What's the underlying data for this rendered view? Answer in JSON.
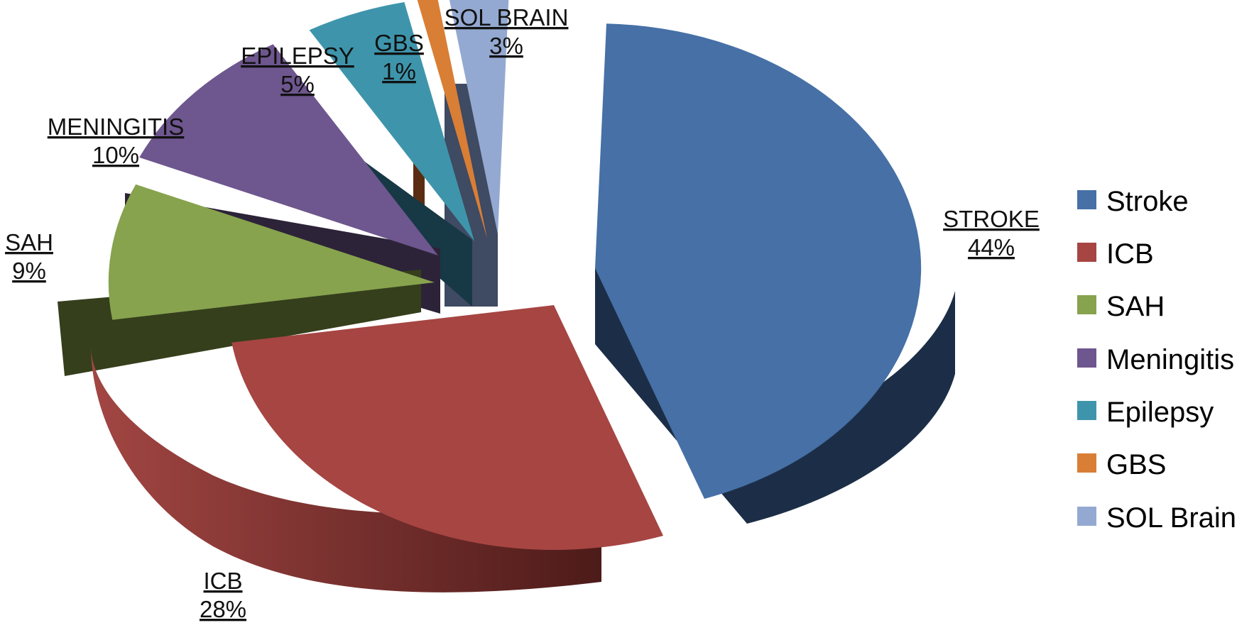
{
  "chart_data": {
    "type": "pie",
    "style": "3d-exploded",
    "title": "",
    "legend_position": "right",
    "slices": [
      {
        "name": "Stroke",
        "label": "STROKE",
        "value": 44,
        "pct_label": "44%",
        "color": "#4670A6"
      },
      {
        "name": "ICB",
        "label": "ICB",
        "value": 28,
        "pct_label": "28%",
        "color": "#A64542"
      },
      {
        "name": "SAH",
        "label": "SAH",
        "value": 9,
        "pct_label": "9%",
        "color": "#87A34E"
      },
      {
        "name": "Meningitis",
        "label": "MENINGITIS",
        "value": 10,
        "pct_label": "10%",
        "color": "#6E568E"
      },
      {
        "name": "Epilepsy",
        "label": "EPILEPSY",
        "value": 5,
        "pct_label": "5%",
        "color": "#3E95AB"
      },
      {
        "name": "GBS",
        "label": "GBS",
        "value": 1,
        "pct_label": "1%",
        "color": "#D97E35"
      },
      {
        "name": "SOL Brain",
        "label": "SOL BRAIN",
        "value": 3,
        "pct_label": "3%",
        "color": "#94A9D1"
      }
    ]
  }
}
